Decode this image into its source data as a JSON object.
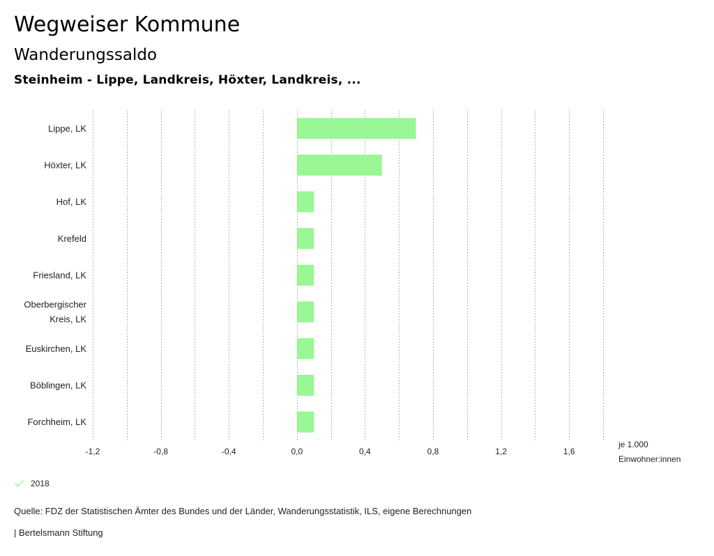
{
  "header": {
    "title": "Wegweiser Kommune",
    "subtitle": "Wanderungssaldo",
    "region": "Steinheim - Lippe, Landkreis, Höxter, Landkreis, ..."
  },
  "chart_data": {
    "type": "bar",
    "orientation": "horizontal",
    "categories": [
      "Lippe, LK",
      "Höxter, LK",
      "Hof, LK",
      "Krefeld",
      "Friesland, LK",
      "Oberbergischer Kreis, LK",
      "Euskirchen, LK",
      "Böblingen, LK",
      "Forchheim, LK"
    ],
    "category_lines": [
      [
        "Lippe, LK"
      ],
      [
        "Höxter, LK"
      ],
      [
        "Hof, LK"
      ],
      [
        "Krefeld"
      ],
      [
        "Friesland, LK"
      ],
      [
        "Oberbergischer",
        "Kreis, LK"
      ],
      [
        "Euskirchen, LK"
      ],
      [
        "Böblingen, LK"
      ],
      [
        "Forchheim, LK"
      ]
    ],
    "series": [
      {
        "name": "2018",
        "values": [
          0.7,
          0.5,
          0.1,
          0.1,
          0.1,
          0.1,
          0.1,
          0.1,
          0.1
        ],
        "color": "#99f794"
      }
    ],
    "xlim": [
      -1.2,
      1.8
    ],
    "tick_values": [
      -1.2,
      -0.8,
      -0.4,
      0.0,
      0.4,
      0.8,
      1.2,
      1.6
    ],
    "tick_labels": [
      "-1,2",
      "-0,8",
      "-0,4",
      "0,0",
      "0,4",
      "0,8",
      "1,2",
      "1,6"
    ],
    "gridline_step": 0.2,
    "grid": true,
    "unit_label_line1": "je 1.000",
    "unit_label_line2": "Einwohner:innen",
    "legend_position": "bottom-left"
  },
  "legend": {
    "label": "2018",
    "color": "#99f794"
  },
  "footer": {
    "source": "Quelle: FDZ der Statistischen Ämter des Bundes und der Länder, Wanderungsstatistik, ILS, eigene Berechnungen",
    "credit": "| Bertelsmann Stiftung"
  }
}
